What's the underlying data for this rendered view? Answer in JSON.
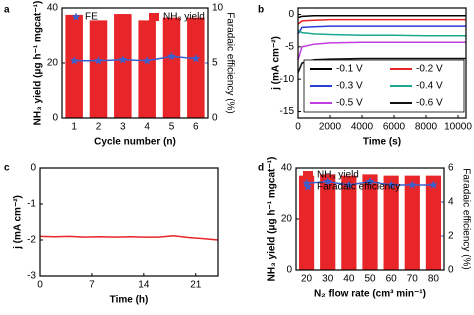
{
  "chart_data": [
    {
      "type": "bar",
      "label": "a",
      "x_label": "Cycle number (n)",
      "y_label": "NH₃ yield (μg h⁻¹ mgcat⁻¹)",
      "y2_label": "Faradaic efficiency (%)",
      "categories": [
        "1",
        "2",
        "3",
        "4",
        "5",
        "6"
      ],
      "series": [
        {
          "name": "FE",
          "color": "#3a5fcd",
          "axis": "y2",
          "values": [
            5.2,
            5.2,
            5.3,
            5.2,
            5.6,
            5.4
          ]
        },
        {
          "name": "NH₃ yield",
          "color": "#e8262a",
          "values": [
            37.5,
            35.5,
            37.8,
            35.5,
            36.5,
            36.5
          ]
        }
      ],
      "ylim": [
        0,
        40
      ],
      "yticks": [
        0,
        20,
        40
      ],
      "y2lim": [
        0,
        10
      ],
      "y2ticks": [
        0,
        5,
        10
      ]
    },
    {
      "type": "line",
      "label": "b",
      "x_label": "Time (s)",
      "y_label": "j (mA cm⁻²)",
      "x": [
        0,
        250,
        1000,
        2000,
        4000,
        6000,
        8000,
        10500
      ],
      "series": [
        {
          "name": "-0.1 V",
          "color": "#000000",
          "values": [
            -0.5,
            -0.3,
            -0.2,
            -0.2,
            -0.2,
            -0.2,
            -0.2,
            -0.2
          ]
        },
        {
          "name": "-0.2 V",
          "color": "#e8262a",
          "values": [
            -1.5,
            -1.0,
            -0.9,
            -0.8,
            -0.8,
            -0.8,
            -0.8,
            -0.8
          ]
        },
        {
          "name": "-0.3 V",
          "color": "#2b3fd6",
          "values": [
            -3.0,
            -2.0,
            -1.9,
            -1.8,
            -1.8,
            -1.8,
            -1.8,
            -1.8
          ]
        },
        {
          "name": "-0.4 V",
          "color": "#1aa88f",
          "values": [
            -2.5,
            -2.8,
            -3.0,
            -3.1,
            -3.2,
            -3.2,
            -3.3,
            -3.3
          ]
        },
        {
          "name": "-0.5 V",
          "color": "#c03ee0",
          "values": [
            -7.0,
            -5.0,
            -4.6,
            -4.4,
            -4.3,
            -4.3,
            -4.3,
            -4.3
          ]
        },
        {
          "name": "-0.6 V",
          "color": "#111111",
          "values": [
            -9.0,
            -7.5,
            -7.0,
            -6.9,
            -6.8,
            -6.8,
            -6.8,
            -6.8
          ]
        }
      ],
      "xlim": [
        0,
        10500
      ],
      "xticks": [
        0,
        2000,
        4000,
        6000,
        8000,
        10000
      ],
      "ylim": [
        -16,
        1
      ],
      "yticks": [
        0,
        -5,
        -10,
        -15
      ]
    },
    {
      "type": "line",
      "label": "c",
      "x_label": "Time (h)",
      "y_label": "j (mA cm⁻²)",
      "x": [
        0,
        2,
        4,
        6,
        8,
        10,
        12,
        14,
        16,
        18,
        20,
        22,
        24
      ],
      "series": [
        {
          "name": "j",
          "color": "#e8262a",
          "values": [
            -1.9,
            -1.91,
            -1.9,
            -1.92,
            -1.91,
            -1.92,
            -1.91,
            -1.92,
            -1.92,
            -1.88,
            -1.93,
            -1.96,
            -2.0
          ]
        }
      ],
      "xlim": [
        0,
        24
      ],
      "xticks": [
        0,
        7,
        14,
        21
      ],
      "ylim": [
        -3,
        0
      ],
      "yticks": [
        0,
        -1,
        -2,
        -3
      ]
    },
    {
      "type": "bar",
      "label": "d",
      "x_label": "N₂ flow rate (cm³ min⁻¹)",
      "y_label": "NH₃ yield (μg h⁻¹ mgcat⁻¹)",
      "y2_label": "Faradaic efficiency (%)",
      "categories": [
        "20",
        "30",
        "40",
        "50",
        "60",
        "70",
        "80"
      ],
      "series": [
        {
          "name": "NH₃ yield",
          "color": "#e8262a",
          "values": [
            37,
            37.5,
            37,
            37.5,
            37,
            37,
            37
          ]
        },
        {
          "name": "Faradaic efficiency",
          "color": "#3a5fcd",
          "axis": "y2",
          "values": [
            5.1,
            5.2,
            5.0,
            5.2,
            5.0,
            5.0,
            5.0
          ]
        }
      ],
      "ylim": [
        0,
        40
      ],
      "yticks": [
        0,
        20,
        40
      ],
      "y2lim": [
        0,
        6
      ],
      "y2ticks": [
        0,
        2,
        4,
        6
      ]
    }
  ]
}
